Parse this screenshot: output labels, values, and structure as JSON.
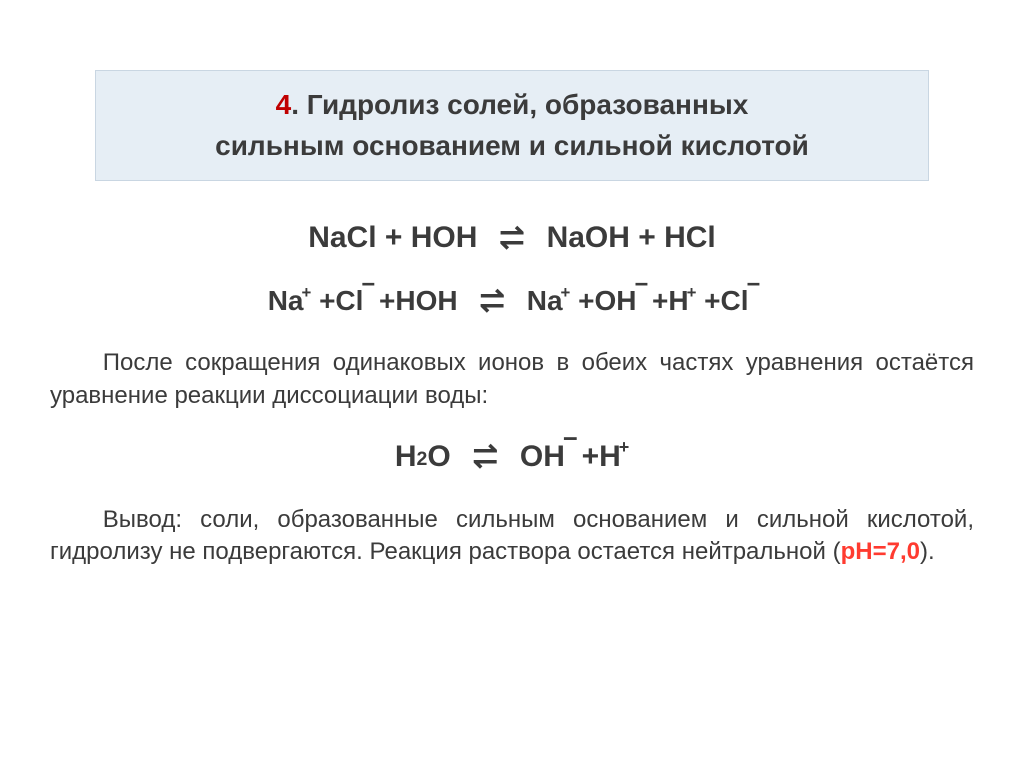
{
  "title": {
    "num": "4",
    "line1_after": ". Гидролиз солей, образованных",
    "line2": "сильным основанием и сильной кислотой"
  },
  "eq1": {
    "lhs": "NaCl + HOH",
    "rhs": "NaOH + HCl"
  },
  "eq2": {
    "na": "Na",
    "na_charge": "+",
    "cl": "Cl",
    "cl_charge": "−",
    "hoh": "HOH",
    "oh": "OH",
    "oh_charge": "−",
    "h": "H",
    "h_charge": "+",
    "plus": " + "
  },
  "para1": "После сокращения одинаковых ионов в обеих частях уравнения остаётся уравнение реакции диссоциации воды:",
  "eq3": {
    "h2o_h": "H",
    "h2o_sub": "2",
    "h2o_o": "O",
    "oh": "OH",
    "oh_charge": "−",
    "h": "H",
    "h_charge": "+",
    "plus": " + "
  },
  "para2_before": "Вывод: соли, образованные сильным основанием и сильной кислотой, гидролизу не подвергаются. Реакция раствора остается нейтральной (",
  "ph": "pH=7,0",
  "para2_after": ").",
  "arrows": {
    "right": "⇀",
    "left": "↽"
  },
  "colors": {
    "title_bg": "#e6eef5",
    "title_border": "#c9d6e2",
    "text": "#3b3b3b",
    "accent_red": "#c00000",
    "ph_red": "#ff3b30",
    "page_bg": "#ffffff"
  },
  "fonts": {
    "title_size": 28,
    "eq_size": 30,
    "eq2_size": 28,
    "para_size": 24
  }
}
